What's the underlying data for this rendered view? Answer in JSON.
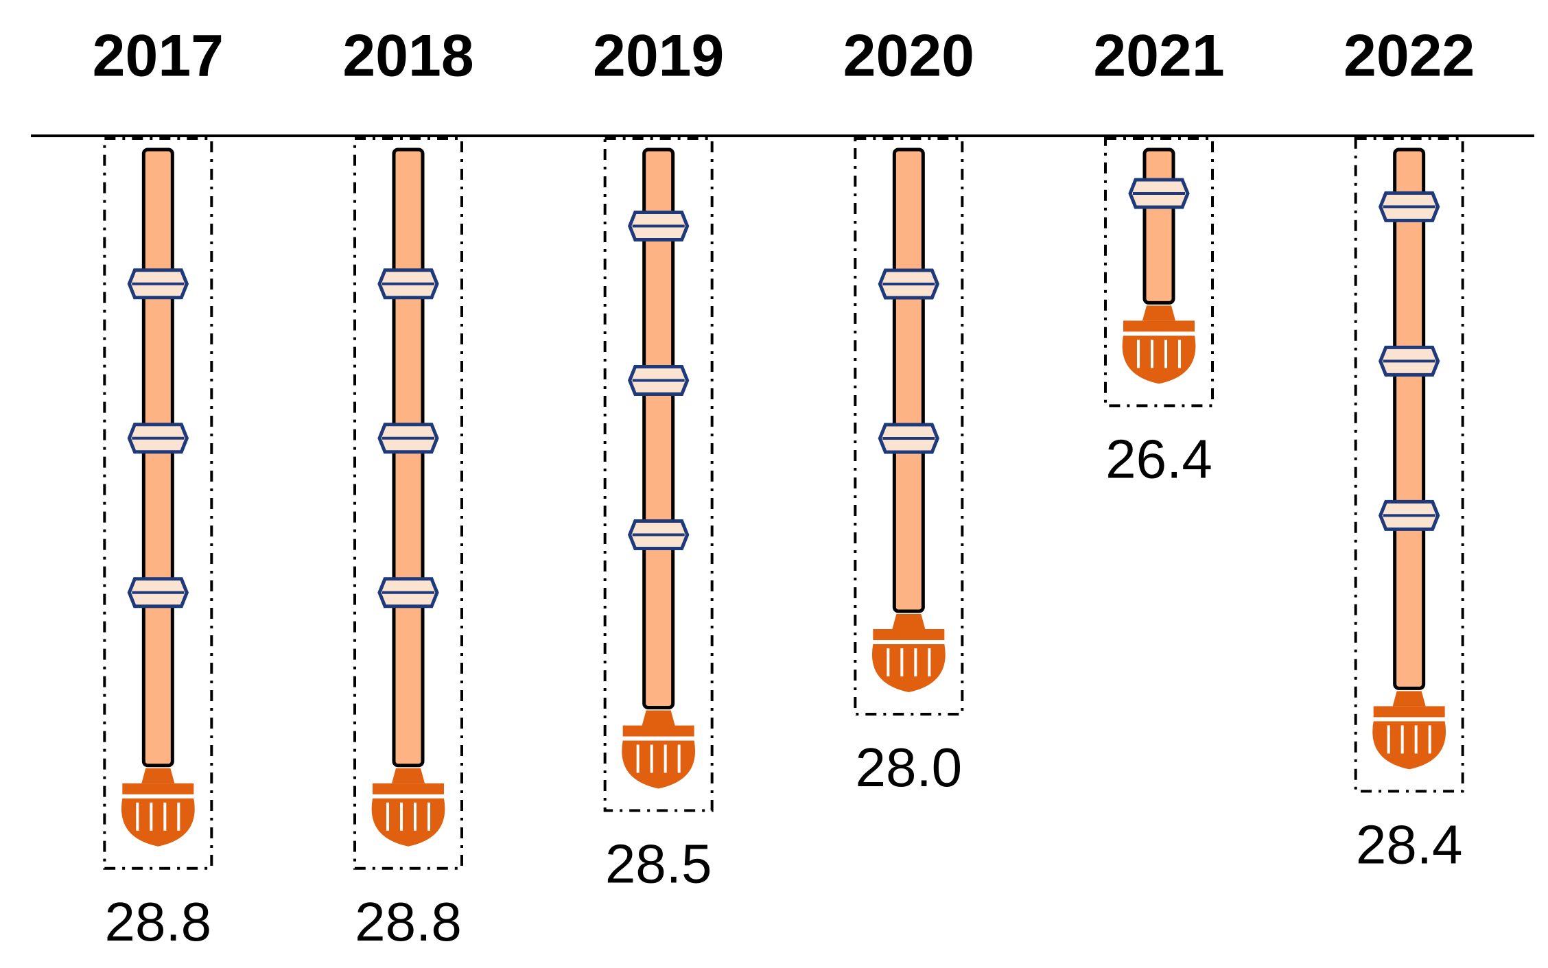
{
  "chart_data": {
    "type": "bar",
    "categories": [
      "2017",
      "2018",
      "2019",
      "2020",
      "2021",
      "2022"
    ],
    "values": [
      28.8,
      28.8,
      28.5,
      28.0,
      26.4,
      28.4
    ],
    "value_labels": [
      "28.8",
      "28.8",
      "28.5",
      "28.0",
      "26.4",
      "28.4"
    ],
    "color": "#fdb384",
    "ylim": [
      25,
      29
    ],
    "invert_y": true
  }
}
